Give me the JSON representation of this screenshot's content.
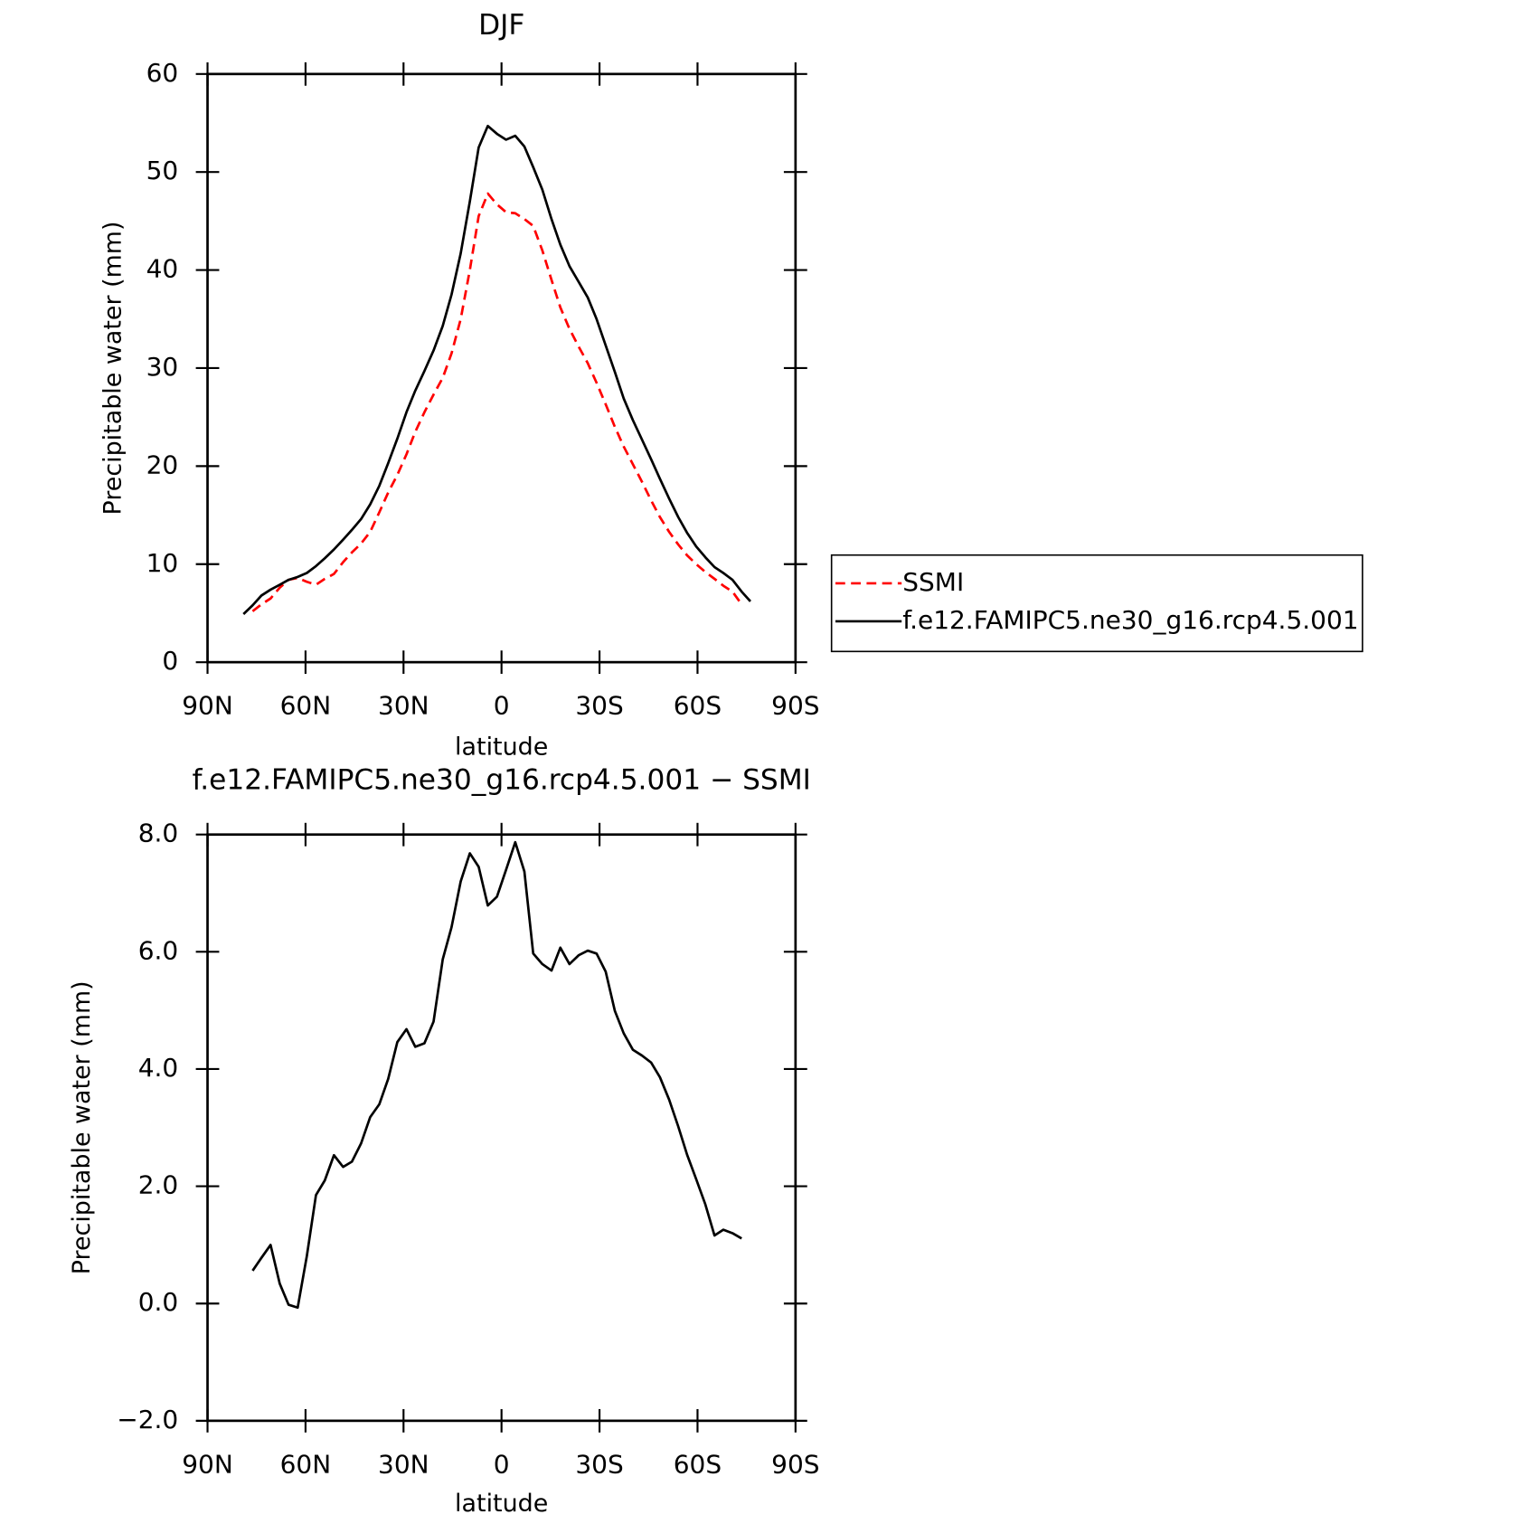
{
  "chart_data": [
    {
      "type": "line",
      "title": "DJF",
      "x_label": "latitude",
      "y_label": "Precipitable water (mm)",
      "xlim": [
        90,
        -90
      ],
      "xticks": [
        {
          "value": 90,
          "label": "90N"
        },
        {
          "value": 60,
          "label": "60N"
        },
        {
          "value": 30,
          "label": "30N"
        },
        0,
        {
          "value": -30,
          "label": "30S"
        },
        {
          "value": -60,
          "label": "60S"
        },
        {
          "value": -90,
          "label": "90S"
        }
      ],
      "ylim": [
        0,
        60
      ],
      "yticks": [
        0,
        10,
        20,
        30,
        40,
        50,
        60
      ],
      "legend": "right",
      "x": [
        79.0,
        76.2,
        73.5,
        70.7,
        67.9,
        65.2,
        62.4,
        59.6,
        56.8,
        54.1,
        51.3,
        48.5,
        45.8,
        43.0,
        40.2,
        37.4,
        34.7,
        31.9,
        29.1,
        26.4,
        23.6,
        20.8,
        18.0,
        15.3,
        12.5,
        9.7,
        7.0,
        4.2,
        1.4,
        -1.4,
        -4.2,
        -7.0,
        -9.7,
        -12.5,
        -15.3,
        -18.0,
        -20.8,
        -23.6,
        -26.4,
        -29.1,
        -31.9,
        -34.7,
        -37.4,
        -40.2,
        -43.0,
        -45.8,
        -48.5,
        -51.3,
        -54.1,
        -56.8,
        -59.6,
        -62.4,
        -65.2,
        -67.9,
        -70.7,
        -73.5,
        -76.2
      ],
      "series": [
        {
          "name": "SSMI",
          "color": "#ff0000",
          "style": "dashed",
          "values": [
            null,
            5.2,
            5.9,
            6.5,
            7.6,
            8.4,
            8.6,
            8.2,
            7.9,
            8.5,
            9.0,
            10.2,
            11.2,
            12.1,
            13.3,
            15.3,
            17.3,
            19.1,
            21.2,
            23.5,
            25.5,
            27.3,
            29.0,
            31.5,
            35.0,
            40.0,
            45.5,
            47.8,
            46.7,
            45.9,
            45.8,
            45.2,
            44.5,
            42.0,
            39.0,
            36.2,
            34.0,
            32.2,
            30.5,
            28.5,
            26.3,
            24.0,
            22.0,
            20.2,
            18.4,
            16.5,
            14.8,
            13.3,
            12.0,
            10.9,
            10.0,
            9.2,
            8.5,
            7.8,
            7.2,
            5.9,
            null
          ]
        },
        {
          "name": "f.e12.FAMIPC5.ne30_g16.rcp4.5.001",
          "color": "#000000",
          "style": "solid",
          "values": [
            4.9,
            5.8,
            6.8,
            7.4,
            7.9,
            8.4,
            8.7,
            9.1,
            9.8,
            10.6,
            11.5,
            12.5,
            13.5,
            14.6,
            16.1,
            18.0,
            20.3,
            22.8,
            25.5,
            27.7,
            29.7,
            31.8,
            34.3,
            37.5,
            41.7,
            47.0,
            52.5,
            54.7,
            53.9,
            53.3,
            53.7,
            52.6,
            50.5,
            48.2,
            45.2,
            42.6,
            40.4,
            38.8,
            37.2,
            35.0,
            32.3,
            29.6,
            26.9,
            24.7,
            22.7,
            20.7,
            18.7,
            16.7,
            14.8,
            13.2,
            11.8,
            10.7,
            9.7,
            9.1,
            8.4,
            7.2,
            6.2
          ]
        }
      ]
    },
    {
      "type": "line",
      "title": "f.e12.FAMIPC5.ne30_g16.rcp4.5.001 − SSMI",
      "x_label": "latitude",
      "y_label": "Precipitable water (mm)",
      "xlim": [
        90,
        -90
      ],
      "xticks": [
        {
          "value": 90,
          "label": "90N"
        },
        {
          "value": 60,
          "label": "60N"
        },
        {
          "value": 30,
          "label": "30N"
        },
        0,
        {
          "value": -30,
          "label": "30S"
        },
        {
          "value": -60,
          "label": "60S"
        },
        {
          "value": -90,
          "label": "90S"
        }
      ],
      "ylim": [
        -2,
        8
      ],
      "yticks": [
        {
          "value": -2,
          "label": "−2.0"
        },
        {
          "value": 0,
          "label": "0.0"
        },
        {
          "value": 2,
          "label": "2.0"
        },
        {
          "value": 4,
          "label": "4.0"
        },
        {
          "value": 6,
          "label": "6.0"
        },
        {
          "value": 8,
          "label": "8.0"
        }
      ],
      "color": "#000000",
      "x": [
        76.2,
        73.5,
        70.7,
        67.9,
        65.2,
        62.4,
        59.6,
        56.8,
        54.1,
        51.3,
        48.5,
        45.8,
        43.0,
        40.2,
        37.4,
        34.7,
        31.9,
        29.1,
        26.4,
        23.6,
        20.8,
        18.0,
        15.3,
        12.5,
        9.7,
        7.0,
        4.2,
        1.4,
        -1.4,
        -4.2,
        -7.0,
        -9.7,
        -12.5,
        -15.3,
        -18.0,
        -20.8,
        -23.6,
        -26.4,
        -29.1,
        -31.9,
        -34.7,
        -37.4,
        -40.2,
        -43.0,
        -45.8,
        -48.5,
        -51.3,
        -54.1,
        -56.8,
        -59.6,
        -62.4,
        -65.2,
        -67.9,
        -70.7,
        -73.5
      ],
      "values": [
        0.56,
        0.78,
        1.0,
        0.34,
        -0.02,
        -0.07,
        0.81,
        1.85,
        2.1,
        2.53,
        2.33,
        2.42,
        2.73,
        3.18,
        3.4,
        3.83,
        4.46,
        4.68,
        4.38,
        4.44,
        4.81,
        5.87,
        6.42,
        7.2,
        7.68,
        7.45,
        6.79,
        6.94,
        7.4,
        7.87,
        7.37,
        5.97,
        5.79,
        5.68,
        6.07,
        5.79,
        5.94,
        6.02,
        5.97,
        5.66,
        4.99,
        4.61,
        4.33,
        4.23,
        4.11,
        3.86,
        3.48,
        3.02,
        2.54,
        2.12,
        1.69,
        1.16,
        1.26,
        1.2,
        1.11
      ]
    }
  ]
}
